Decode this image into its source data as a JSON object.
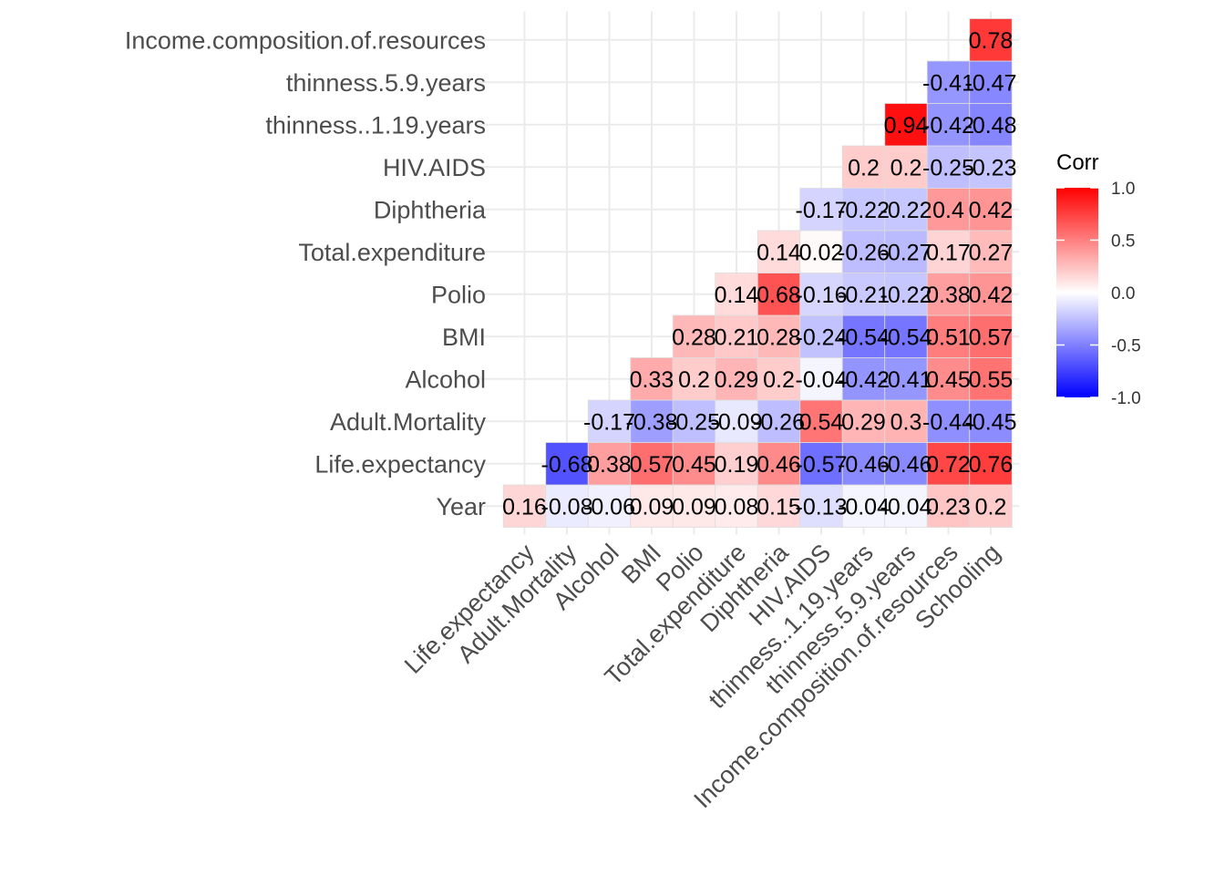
{
  "chart_data": {
    "type": "heatmap",
    "title": "",
    "xlabel": "",
    "ylabel": "",
    "x_categories": [
      "Life.expectancy",
      "Adult.Mortality",
      "Alcohol",
      "BMI",
      "Polio",
      "Total.expenditure",
      "Diphtheria",
      "HIV.AIDS",
      "thinness..1.19.years",
      "thinness.5.9.years",
      "Income.composition.of.resources",
      "Schooling"
    ],
    "y_categories": [
      "Year",
      "Life.expectancy",
      "Adult.Mortality",
      "Alcohol",
      "BMI",
      "Polio",
      "Total.expenditure",
      "Diphtheria",
      "HIV.AIDS",
      "thinness..1.19.years",
      "thinness.5.9.years",
      "Income.composition.of.resources"
    ],
    "values": [
      [
        0.16,
        -0.08,
        -0.06,
        0.09,
        0.09,
        0.08,
        0.15,
        -0.13,
        -0.04,
        -0.04,
        0.23,
        0.2
      ],
      [
        null,
        -0.68,
        0.38,
        0.57,
        0.45,
        0.19,
        0.46,
        -0.57,
        -0.46,
        -0.46,
        0.72,
        0.76
      ],
      [
        null,
        null,
        -0.17,
        -0.38,
        -0.25,
        -0.09,
        -0.26,
        0.54,
        0.29,
        0.3,
        -0.44,
        -0.45
      ],
      [
        null,
        null,
        null,
        0.33,
        0.2,
        0.29,
        0.2,
        -0.04,
        -0.42,
        -0.41,
        0.45,
        0.55
      ],
      [
        null,
        null,
        null,
        null,
        0.28,
        0.21,
        0.28,
        -0.24,
        -0.54,
        -0.54,
        0.51,
        0.57
      ],
      [
        null,
        null,
        null,
        null,
        null,
        0.14,
        0.68,
        -0.16,
        -0.21,
        -0.22,
        0.38,
        0.42
      ],
      [
        null,
        null,
        null,
        null,
        null,
        null,
        0.14,
        0.02,
        -0.26,
        -0.27,
        0.17,
        0.27
      ],
      [
        null,
        null,
        null,
        null,
        null,
        null,
        null,
        -0.17,
        -0.22,
        -0.22,
        0.4,
        0.42
      ],
      [
        null,
        null,
        null,
        null,
        null,
        null,
        null,
        null,
        0.2,
        0.2,
        -0.25,
        -0.23
      ],
      [
        null,
        null,
        null,
        null,
        null,
        null,
        null,
        null,
        null,
        0.94,
        -0.42,
        -0.48
      ],
      [
        null,
        null,
        null,
        null,
        null,
        null,
        null,
        null,
        null,
        null,
        -0.41,
        -0.47
      ],
      [
        null,
        null,
        null,
        null,
        null,
        null,
        null,
        null,
        null,
        null,
        null,
        0.78
      ]
    ],
    "legend": {
      "title": "Corr",
      "ticks": [
        1.0,
        0.5,
        0.0,
        -0.5,
        -1.0
      ],
      "tick_labels": [
        "1.0",
        "0.5",
        "0.0",
        "-0.5",
        "-1.0"
      ],
      "placement": "right"
    },
    "colors": {
      "low": "#0000ff",
      "mid": "#ffffff",
      "high": "#ff0000",
      "grid": "#ebebeb",
      "cell_border": "#dcdcdc"
    },
    "value_range": [
      -1,
      1
    ],
    "grid": true
  }
}
